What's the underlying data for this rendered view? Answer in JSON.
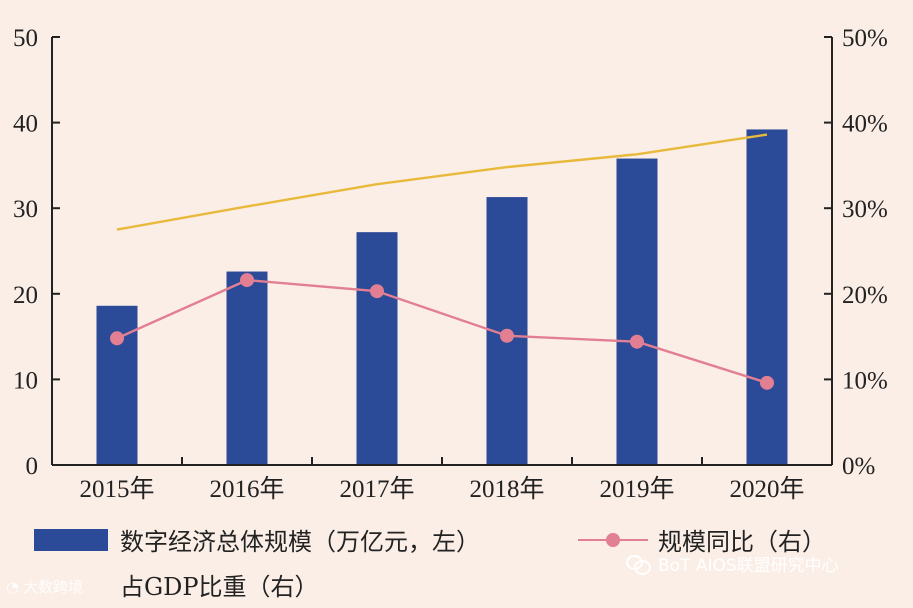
{
  "chart_data": {
    "type": "bar",
    "categories": [
      "2015年",
      "2016年",
      "2017年",
      "2018年",
      "2019年",
      "2020年"
    ],
    "left_axis": {
      "ylim": [
        0,
        50
      ],
      "ticks": [
        "0",
        "10",
        "20",
        "30",
        "40",
        "50"
      ]
    },
    "right_axis": {
      "ylim": [
        0,
        50
      ],
      "ticks": [
        "0%",
        "10%",
        "20%",
        "30%",
        "40%",
        "50%"
      ]
    },
    "series": [
      {
        "name": "数字经济总体规模（万亿元，左）",
        "type": "bar",
        "axis": "left",
        "color": "#2b4a97",
        "values": [
          18.6,
          22.6,
          27.2,
          31.3,
          35.8,
          39.2
        ]
      },
      {
        "name": "规模同比（右）",
        "type": "line",
        "axis": "right",
        "marker": true,
        "color": "#e27f92",
        "values": [
          14.8,
          21.6,
          20.3,
          15.1,
          14.4,
          9.6
        ]
      },
      {
        "name": "占GDP比重（右）",
        "type": "line",
        "axis": "right",
        "marker": false,
        "color": "#e8b93a",
        "values": [
          27.5,
          30.2,
          32.8,
          34.8,
          36.3,
          38.6
        ]
      }
    ],
    "legend_position": "bottom",
    "grid": false
  },
  "watermarks": {
    "left": "大数跨境",
    "right": "BoT AIOS联盟研究中心"
  },
  "icons": {
    "watermark_left": "logo-icon",
    "watermark_right": "wechat-icon"
  }
}
